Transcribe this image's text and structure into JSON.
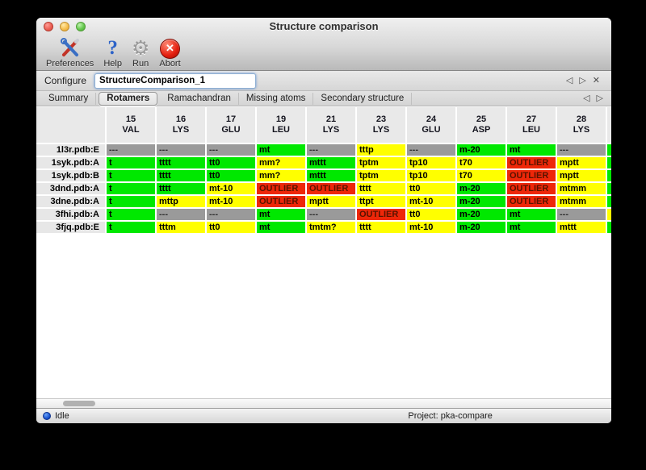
{
  "window": {
    "title": "Structure comparison"
  },
  "toolbar": {
    "items": [
      {
        "label": "Preferences",
        "icon": "tools-icon"
      },
      {
        "label": "Help",
        "icon": "question-icon",
        "glyph": "?"
      },
      {
        "label": "Run",
        "icon": "gear-icon",
        "glyph": "⚙"
      },
      {
        "label": "Abort",
        "icon": "abort-icon",
        "glyph": "✕"
      }
    ]
  },
  "configure": {
    "label": "Configure",
    "value": "StructureComparison_1",
    "nav": {
      "prev": "◁",
      "next": "▷",
      "close": "✕"
    }
  },
  "tabs": {
    "items": [
      "Summary",
      "Rotamers",
      "Ramachandran",
      "Missing atoms",
      "Secondary structure"
    ],
    "selected": "Rotamers",
    "nav": {
      "prev": "◁",
      "next": "▷"
    }
  },
  "table": {
    "columns": [
      {
        "num": "15",
        "res": "VAL"
      },
      {
        "num": "16",
        "res": "LYS"
      },
      {
        "num": "17",
        "res": "GLU"
      },
      {
        "num": "19",
        "res": "LEU"
      },
      {
        "num": "21",
        "res": "LYS"
      },
      {
        "num": "23",
        "res": "LYS"
      },
      {
        "num": "24",
        "res": "GLU"
      },
      {
        "num": "25",
        "res": "ASP"
      },
      {
        "num": "27",
        "res": "LEU"
      },
      {
        "num": "28",
        "res": "LYS"
      }
    ],
    "rows": [
      {
        "label": "1l3r.pdb:E",
        "partial": "green",
        "cells": [
          {
            "text": "---",
            "color": "gray"
          },
          {
            "text": "---",
            "color": "gray"
          },
          {
            "text": "---",
            "color": "gray"
          },
          {
            "text": "mt",
            "color": "green"
          },
          {
            "text": "---",
            "color": "gray"
          },
          {
            "text": "tttp",
            "color": "yellow"
          },
          {
            "text": "---",
            "color": "gray"
          },
          {
            "text": "m-20",
            "color": "green"
          },
          {
            "text": "mt",
            "color": "green"
          },
          {
            "text": "---",
            "color": "gray"
          }
        ]
      },
      {
        "label": "1syk.pdb:A",
        "partial": "green",
        "cells": [
          {
            "text": "t",
            "color": "green"
          },
          {
            "text": "tttt",
            "color": "green"
          },
          {
            "text": "tt0",
            "color": "green"
          },
          {
            "text": "mm?",
            "color": "yellow"
          },
          {
            "text": "mttt",
            "color": "green"
          },
          {
            "text": "tptm",
            "color": "yellow"
          },
          {
            "text": "tp10",
            "color": "yellow"
          },
          {
            "text": "t70",
            "color": "yellow"
          },
          {
            "text": "OUTLIER",
            "color": "red"
          },
          {
            "text": "mptt",
            "color": "yellow"
          }
        ]
      },
      {
        "label": "1syk.pdb:B",
        "partial": "green",
        "cells": [
          {
            "text": "t",
            "color": "green"
          },
          {
            "text": "tttt",
            "color": "green"
          },
          {
            "text": "tt0",
            "color": "green"
          },
          {
            "text": "mm?",
            "color": "yellow"
          },
          {
            "text": "mttt",
            "color": "green"
          },
          {
            "text": "tptm",
            "color": "yellow"
          },
          {
            "text": "tp10",
            "color": "yellow"
          },
          {
            "text": "t70",
            "color": "yellow"
          },
          {
            "text": "OUTLIER",
            "color": "red"
          },
          {
            "text": "mptt",
            "color": "yellow"
          }
        ]
      },
      {
        "label": "3dnd.pdb:A",
        "partial": "green",
        "cells": [
          {
            "text": "t",
            "color": "green"
          },
          {
            "text": "tttt",
            "color": "green"
          },
          {
            "text": "mt-10",
            "color": "yellow"
          },
          {
            "text": "OUTLIER",
            "color": "red"
          },
          {
            "text": "OUTLIER",
            "color": "red"
          },
          {
            "text": "tttt",
            "color": "yellow"
          },
          {
            "text": "tt0",
            "color": "yellow"
          },
          {
            "text": "m-20",
            "color": "green"
          },
          {
            "text": "OUTLIER",
            "color": "red"
          },
          {
            "text": "mtmm",
            "color": "yellow"
          }
        ]
      },
      {
        "label": "3dne.pdb:A",
        "partial": "green",
        "cells": [
          {
            "text": "t",
            "color": "green"
          },
          {
            "text": "mttp",
            "color": "yellow"
          },
          {
            "text": "mt-10",
            "color": "yellow"
          },
          {
            "text": "OUTLIER",
            "color": "red"
          },
          {
            "text": "mptt",
            "color": "yellow"
          },
          {
            "text": "ttpt",
            "color": "yellow"
          },
          {
            "text": "mt-10",
            "color": "yellow"
          },
          {
            "text": "m-20",
            "color": "green"
          },
          {
            "text": "OUTLIER",
            "color": "red"
          },
          {
            "text": "mtmm",
            "color": "yellow"
          }
        ]
      },
      {
        "label": "3fhi.pdb:A",
        "partial": "yellow",
        "cells": [
          {
            "text": "t",
            "color": "green"
          },
          {
            "text": "---",
            "color": "gray"
          },
          {
            "text": "---",
            "color": "gray"
          },
          {
            "text": "mt",
            "color": "green"
          },
          {
            "text": "---",
            "color": "gray"
          },
          {
            "text": "OUTLIER",
            "color": "red"
          },
          {
            "text": "tt0",
            "color": "yellow"
          },
          {
            "text": "m-20",
            "color": "green"
          },
          {
            "text": "mt",
            "color": "green"
          },
          {
            "text": "---",
            "color": "gray"
          }
        ]
      },
      {
        "label": "3fjq.pdb:E",
        "partial": "green",
        "cells": [
          {
            "text": "t",
            "color": "green"
          },
          {
            "text": "tttm",
            "color": "yellow"
          },
          {
            "text": "tt0",
            "color": "yellow"
          },
          {
            "text": "mt",
            "color": "green"
          },
          {
            "text": "tmtm?",
            "color": "yellow"
          },
          {
            "text": "tttt",
            "color": "yellow"
          },
          {
            "text": "mt-10",
            "color": "yellow"
          },
          {
            "text": "m-20",
            "color": "green"
          },
          {
            "text": "mt",
            "color": "green"
          },
          {
            "text": "mttt",
            "color": "yellow"
          }
        ]
      }
    ]
  },
  "statusbar": {
    "state": "Idle",
    "project": "Project: pka-compare"
  },
  "colors": {
    "green": "#00e800",
    "yellow": "#ffff00",
    "red": "#ee2709",
    "gray": "#9a9a9a",
    "outlier_text": "#581300"
  }
}
